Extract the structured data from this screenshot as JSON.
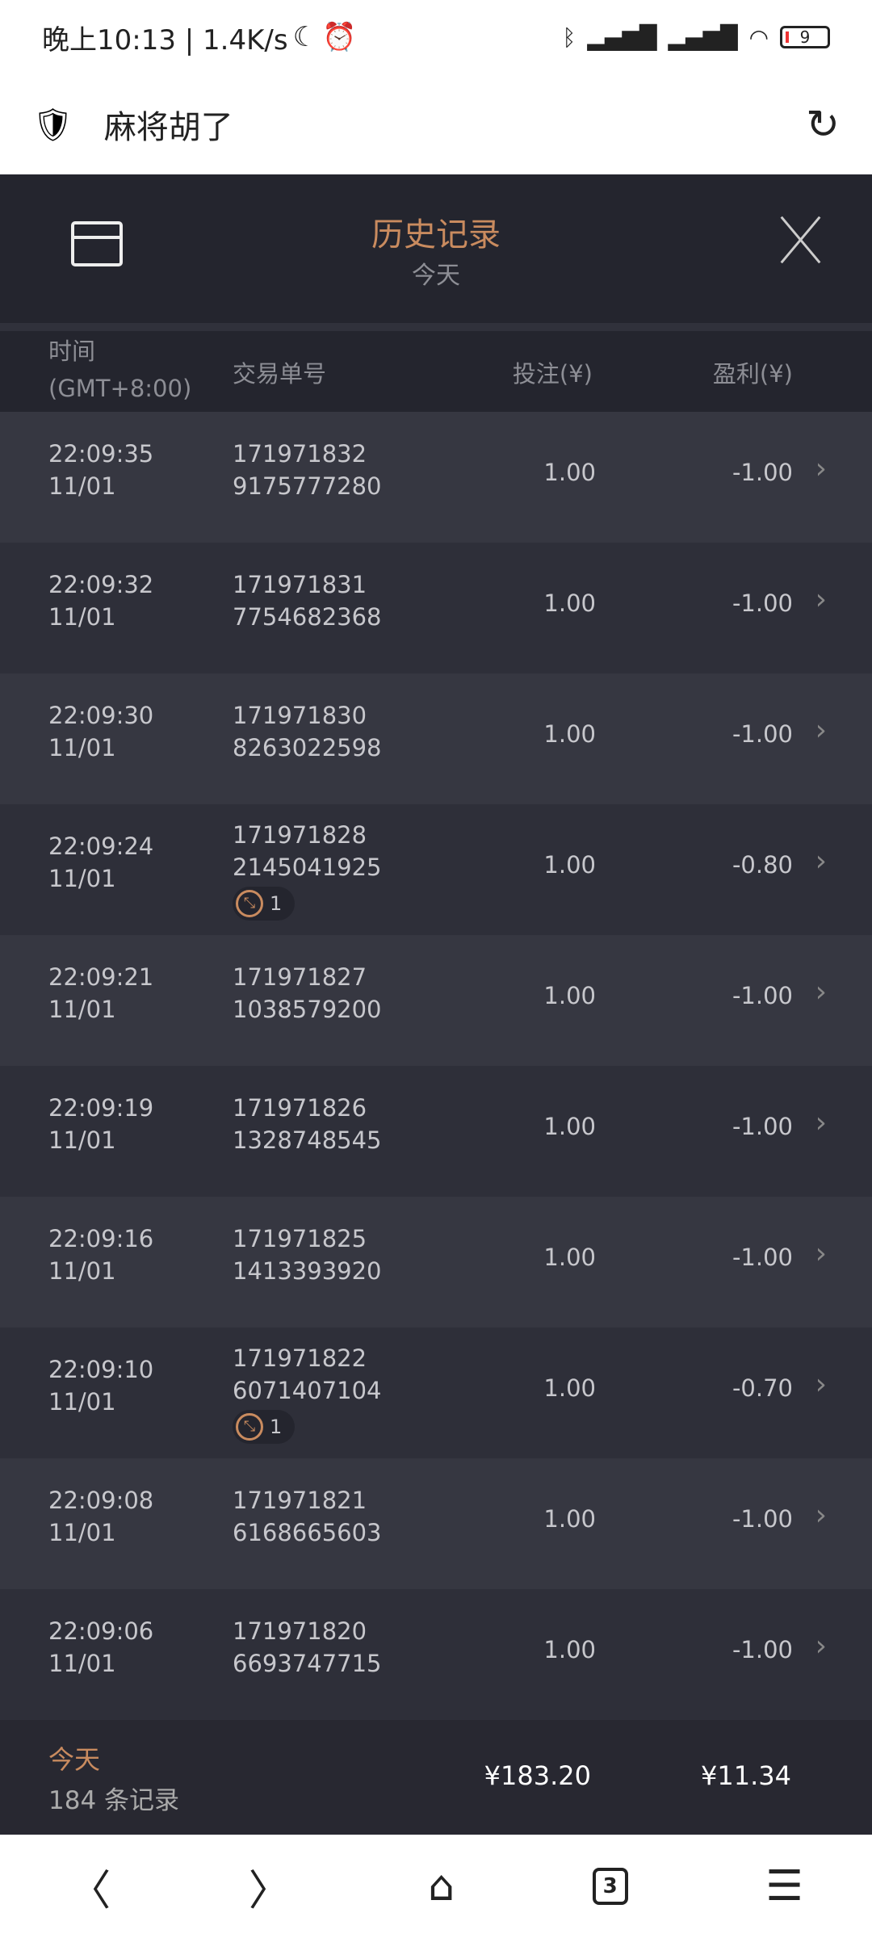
{
  "status_bar": {
    "time": "晚上10:13 | 1.4K/s",
    "battery": "9"
  },
  "browser": {
    "title": "麻将胡了"
  },
  "header": {
    "title": "历史记录",
    "subtitle": "今天"
  },
  "columns": {
    "time": "时间",
    "timezone": "(GMT+8:00)",
    "order_id": "交易单号",
    "bet": "投注(¥)",
    "profit": "盈利(¥)"
  },
  "rows": [
    {
      "time": "22:09:35",
      "date": "11/01",
      "id1": "171971832",
      "id2": "9175777280",
      "bet": "1.00",
      "profit": "-1.00"
    },
    {
      "time": "22:09:32",
      "date": "11/01",
      "id1": "171971831",
      "id2": "7754682368",
      "bet": "1.00",
      "profit": "-1.00"
    },
    {
      "time": "22:09:30",
      "date": "11/01",
      "id1": "171971830",
      "id2": "8263022598",
      "bet": "1.00",
      "profit": "-1.00"
    },
    {
      "time": "22:09:24",
      "date": "11/01",
      "id1": "171971828",
      "id2": "2145041925",
      "bet": "1.00",
      "profit": "-0.80",
      "badge": "1"
    },
    {
      "time": "22:09:21",
      "date": "11/01",
      "id1": "171971827",
      "id2": "1038579200",
      "bet": "1.00",
      "profit": "-1.00"
    },
    {
      "time": "22:09:19",
      "date": "11/01",
      "id1": "171971826",
      "id2": "1328748545",
      "bet": "1.00",
      "profit": "-1.00"
    },
    {
      "time": "22:09:16",
      "date": "11/01",
      "id1": "171971825",
      "id2": "1413393920",
      "bet": "1.00",
      "profit": "-1.00"
    },
    {
      "time": "22:09:10",
      "date": "11/01",
      "id1": "171971822",
      "id2": "6071407104",
      "bet": "1.00",
      "profit": "-0.70",
      "badge": "1"
    },
    {
      "time": "22:09:08",
      "date": "11/01",
      "id1": "171971821",
      "id2": "6168665603",
      "bet": "1.00",
      "profit": "-1.00"
    },
    {
      "time": "22:09:06",
      "date": "11/01",
      "id1": "171971820",
      "id2": "6693747715",
      "bet": "1.00",
      "profit": "-1.00"
    }
  ],
  "footer": {
    "period": "今天",
    "count": "184 条记录",
    "total_bet": "¥183.20",
    "total_profit": "¥11.34"
  },
  "nav": {
    "tab_count": "3"
  },
  "colors": {
    "accent": "#c98b5f",
    "background": "#24252e",
    "row_a": "#363741",
    "row_b": "#2e2f39"
  }
}
